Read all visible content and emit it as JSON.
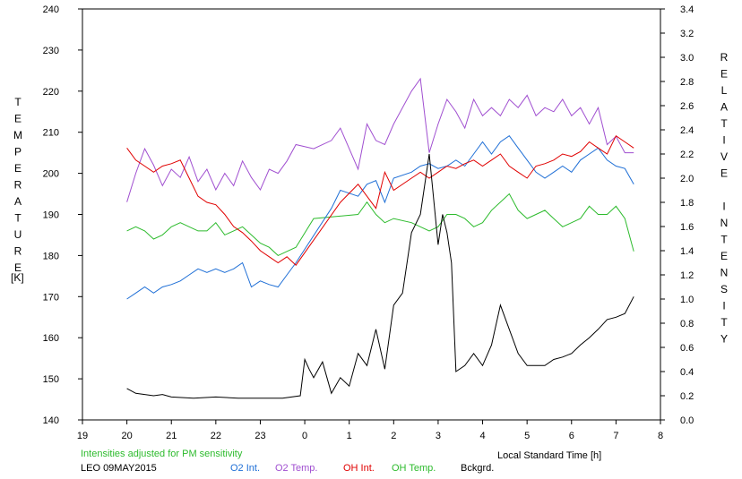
{
  "chart_data": {
    "type": "line",
    "y_left_label": "TEMPERATURE",
    "y_left_unit": "[K]",
    "y_right_label": "RELATIVE INTENSITY",
    "xlabel": "Local Standard Time [h]",
    "xlim": [
      19,
      32
    ],
    "ylim_left": [
      140,
      240
    ],
    "ylim_right": [
      0.0,
      3.4
    ],
    "x_ticks": [
      19,
      20,
      21,
      22,
      23,
      24,
      25,
      26,
      27,
      28,
      29,
      30,
      31,
      32
    ],
    "x_tick_labels": [
      "19",
      "20",
      "21",
      "22",
      "23",
      "0",
      "1",
      "2",
      "3",
      "4",
      "5",
      "6",
      "7",
      "8"
    ],
    "y_left_ticks": [
      140,
      150,
      160,
      170,
      180,
      190,
      200,
      210,
      220,
      230,
      240
    ],
    "y_left_tick_labels": [
      "140",
      "150",
      "160",
      "170",
      "180",
      "190",
      "200",
      "210",
      "220",
      "230",
      "240"
    ],
    "y_right_ticks": [
      0,
      0.2,
      0.4,
      0.6,
      0.8,
      1.0,
      1.2,
      1.4,
      1.6,
      1.8,
      2.0,
      2.2,
      2.4,
      2.6,
      2.8,
      3.0,
      3.2,
      3.4
    ],
    "y_right_tick_labels": [
      "0.0",
      "0.2",
      "0.4",
      "0.6",
      "0.8",
      "1.0",
      "1.2",
      "1.4",
      "1.6",
      "1.8",
      "2.0",
      "2.2",
      "2.4",
      "2.6",
      "2.8",
      "3.0",
      "3.2",
      "3.4"
    ],
    "grid": false,
    "note": "Intensities adjusted for PM sensitivity",
    "station": "LEO 09MAY2015",
    "legend": [
      {
        "name": "O2 Int.",
        "color": "#1f6fd6"
      },
      {
        "name": "O2 Temp.",
        "color": "#a04fd0"
      },
      {
        "name": "OH Int.",
        "color": "#e00000"
      },
      {
        "name": "OH Temp.",
        "color": "#2dbb2d"
      },
      {
        "name": "Bckgrd.",
        "color": "#000000"
      }
    ],
    "series": [
      {
        "name": "O2 Temp.",
        "axis": "left",
        "color": "#a04fd0",
        "x": [
          20.0,
          20.2,
          20.4,
          20.6,
          20.8,
          21.0,
          21.2,
          21.4,
          21.6,
          21.8,
          22.0,
          22.2,
          22.4,
          22.6,
          22.8,
          23.0,
          23.2,
          23.4,
          23.6,
          23.8,
          24.2,
          24.6,
          24.8,
          25.2,
          25.4,
          25.6,
          25.8,
          26.0,
          26.4,
          26.6,
          26.8,
          27.0,
          27.2,
          27.4,
          27.6,
          27.8,
          28.0,
          28.2,
          28.4,
          28.6,
          28.8,
          29.0,
          29.2,
          29.4,
          29.6,
          29.8,
          30.0,
          30.2,
          30.4,
          30.6,
          30.8,
          31.0,
          31.2,
          31.4
        ],
        "y": [
          193,
          200,
          206,
          202,
          197,
          201,
          199,
          204,
          198,
          201,
          196,
          200,
          197,
          203,
          199,
          196,
          201,
          200,
          203,
          207,
          206,
          208,
          211,
          201,
          212,
          208,
          207,
          212,
          220,
          223,
          205,
          212,
          218,
          215,
          211,
          218,
          214,
          216,
          214,
          218,
          216,
          219,
          214,
          216,
          215,
          218,
          214,
          216,
          212,
          216,
          207,
          209,
          205,
          205
        ]
      },
      {
        "name": "OH Temp.",
        "axis": "left",
        "color": "#2dbb2d",
        "x": [
          20.0,
          20.2,
          20.4,
          20.6,
          20.8,
          21.0,
          21.2,
          21.4,
          21.6,
          21.8,
          22.0,
          22.2,
          22.4,
          22.6,
          22.8,
          23.0,
          23.2,
          23.4,
          23.6,
          23.8,
          24.2,
          25.2,
          25.4,
          25.6,
          25.8,
          26.0,
          26.4,
          26.6,
          26.8,
          27.0,
          27.2,
          27.4,
          27.6,
          27.8,
          28.0,
          28.2,
          28.4,
          28.6,
          28.8,
          29.0,
          29.2,
          29.4,
          29.6,
          29.8,
          30.0,
          30.2,
          30.4,
          30.6,
          30.8,
          31.0,
          31.2,
          31.4
        ],
        "y": [
          186,
          187,
          186,
          184,
          185,
          187,
          188,
          187,
          186,
          186,
          188,
          185,
          186,
          187,
          185,
          183,
          182,
          180,
          181,
          182,
          189,
          190,
          193,
          190,
          188,
          189,
          188,
          187,
          186,
          187,
          190,
          190,
          189,
          187,
          188,
          191,
          193,
          195,
          191,
          189,
          190,
          191,
          189,
          187,
          188,
          189,
          192,
          190,
          190,
          192,
          189,
          181
        ]
      },
      {
        "name": "O2 Int.",
        "axis": "right",
        "color": "#1f6fd6",
        "x": [
          20.0,
          20.2,
          20.4,
          20.6,
          20.8,
          21.0,
          21.2,
          21.4,
          21.6,
          21.8,
          22.0,
          22.2,
          22.4,
          22.6,
          22.8,
          23.0,
          23.2,
          23.4,
          23.6,
          23.8,
          24.6,
          24.8,
          25.2,
          25.4,
          25.6,
          25.8,
          26.0,
          26.4,
          26.6,
          26.8,
          27.0,
          27.2,
          27.4,
          27.6,
          27.8,
          28.0,
          28.2,
          28.4,
          28.6,
          28.8,
          29.0,
          29.2,
          29.4,
          29.6,
          29.8,
          30.0,
          30.2,
          30.4,
          30.6,
          30.8,
          31.0,
          31.2,
          31.4
        ],
        "y": [
          1.0,
          1.05,
          1.1,
          1.05,
          1.1,
          1.12,
          1.15,
          1.2,
          1.25,
          1.22,
          1.25,
          1.22,
          1.25,
          1.3,
          1.1,
          1.15,
          1.12,
          1.1,
          1.2,
          1.3,
          1.75,
          1.9,
          1.85,
          1.95,
          1.98,
          1.8,
          2.0,
          2.05,
          2.1,
          2.12,
          2.08,
          2.1,
          2.15,
          2.1,
          2.2,
          2.3,
          2.2,
          2.3,
          2.35,
          2.25,
          2.15,
          2.05,
          2.0,
          2.05,
          2.1,
          2.05,
          2.15,
          2.2,
          2.25,
          2.15,
          2.1,
          2.08,
          1.95
        ]
      },
      {
        "name": "OH Int.",
        "axis": "right",
        "color": "#e00000",
        "x": [
          20.0,
          20.2,
          20.4,
          20.6,
          20.8,
          21.0,
          21.2,
          21.4,
          21.6,
          21.8,
          22.0,
          22.2,
          22.4,
          22.6,
          22.8,
          23.0,
          23.2,
          23.4,
          23.6,
          23.8,
          24.8,
          25.2,
          25.4,
          25.6,
          25.8,
          26.0,
          26.4,
          26.6,
          26.8,
          27.0,
          27.2,
          27.4,
          27.6,
          27.8,
          28.0,
          28.2,
          28.4,
          28.6,
          28.8,
          29.0,
          29.2,
          29.4,
          29.6,
          29.8,
          30.0,
          30.2,
          30.4,
          30.6,
          30.8,
          31.0,
          31.2,
          31.4
        ],
        "y": [
          2.25,
          2.15,
          2.1,
          2.05,
          2.1,
          2.12,
          2.15,
          2.0,
          1.85,
          1.8,
          1.78,
          1.7,
          1.6,
          1.55,
          1.48,
          1.4,
          1.35,
          1.3,
          1.35,
          1.28,
          1.8,
          1.95,
          1.85,
          1.75,
          2.05,
          1.9,
          2.0,
          2.05,
          2.0,
          2.05,
          2.1,
          2.08,
          2.12,
          2.15,
          2.1,
          2.15,
          2.2,
          2.1,
          2.05,
          2.0,
          2.1,
          2.12,
          2.15,
          2.2,
          2.18,
          2.22,
          2.3,
          2.25,
          2.2,
          2.35,
          2.3,
          2.25
        ]
      },
      {
        "name": "Bckgrd.",
        "axis": "right",
        "color": "#000000",
        "x": [
          20.0,
          20.2,
          20.4,
          20.6,
          20.8,
          21.0,
          21.5,
          22.0,
          22.5,
          23.0,
          23.5,
          23.9,
          24.0,
          24.1,
          24.2,
          24.4,
          24.6,
          24.8,
          25.0,
          25.2,
          25.4,
          25.6,
          25.8,
          26.0,
          26.2,
          26.4,
          26.6,
          26.8,
          27.0,
          27.1,
          27.2,
          27.3,
          27.4,
          27.6,
          27.8,
          28.0,
          28.2,
          28.4,
          28.6,
          28.8,
          29.0,
          29.2,
          29.4,
          29.6,
          29.8,
          30.0,
          30.2,
          30.4,
          30.6,
          30.8,
          31.0,
          31.2,
          31.4
        ],
        "y": [
          0.26,
          0.22,
          0.21,
          0.2,
          0.21,
          0.19,
          0.18,
          0.19,
          0.18,
          0.18,
          0.18,
          0.2,
          0.5,
          0.42,
          0.35,
          0.48,
          0.22,
          0.35,
          0.28,
          0.55,
          0.45,
          0.75,
          0.42,
          0.95,
          1.05,
          1.55,
          1.7,
          2.2,
          1.45,
          1.7,
          1.55,
          1.3,
          0.4,
          0.45,
          0.55,
          0.45,
          0.62,
          0.95,
          0.75,
          0.55,
          0.45,
          0.45,
          0.45,
          0.5,
          0.52,
          0.55,
          0.62,
          0.68,
          0.75,
          0.83,
          0.85,
          0.88,
          1.02
        ]
      }
    ]
  }
}
